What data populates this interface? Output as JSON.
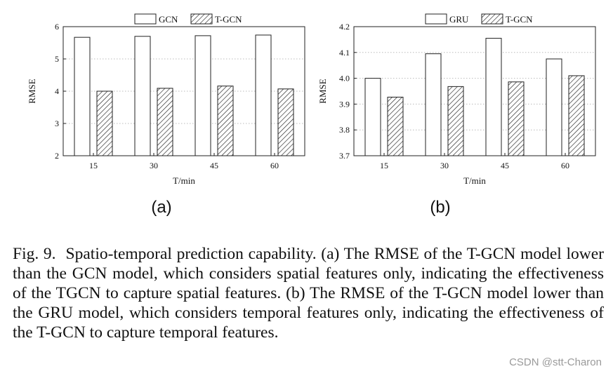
{
  "chart_data": [
    {
      "type": "bar",
      "panel": "(a)",
      "title": "",
      "xlabel": "T/min",
      "ylabel": "RMSE",
      "categories": [
        "15",
        "30",
        "45",
        "60"
      ],
      "series": [
        {
          "name": "GCN",
          "pattern": "plain",
          "values": [
            5.67,
            5.7,
            5.72,
            5.74
          ]
        },
        {
          "name": "T-GCN",
          "pattern": "hatched",
          "values": [
            4.0,
            4.09,
            4.16,
            4.07
          ]
        }
      ],
      "ylim": [
        2,
        6
      ],
      "yticks": [
        "2",
        "3",
        "4",
        "5",
        "6"
      ],
      "grid": true,
      "legend_position": "top-center"
    },
    {
      "type": "bar",
      "panel": "(b)",
      "title": "",
      "xlabel": "T/min",
      "ylabel": "RMSE",
      "categories": [
        "15",
        "30",
        "45",
        "60"
      ],
      "series": [
        {
          "name": "GRU",
          "pattern": "plain",
          "values": [
            4.0,
            4.095,
            4.155,
            4.075
          ]
        },
        {
          "name": "T-GCN",
          "pattern": "hatched",
          "values": [
            3.927,
            3.968,
            3.986,
            4.01
          ]
        }
      ],
      "ylim": [
        3.7,
        4.2
      ],
      "yticks": [
        "3.7",
        "3.8",
        "3.9",
        "4.0",
        "4.1",
        "4.2"
      ],
      "grid": true,
      "legend_position": "top-center"
    }
  ],
  "caption": {
    "label": "Fig. 9.",
    "text": "Spatio-temporal prediction capability. (a) The RMSE of the T-GCN model lower than the GCN model, which considers spatial features only, indicating the effectiveness of the TGCN to capture spatial features. (b) The RMSE of the T-GCN model lower than the GRU model, which considers temporal features only, indicating the effectiveness of the T-GCN to capture temporal features."
  },
  "watermark": "CSDN @stt-Charon",
  "colors": {
    "bar_stroke": "#222222",
    "bar_fill": "#ffffff",
    "grid": "#bbbbbb",
    "text": "#111111"
  }
}
